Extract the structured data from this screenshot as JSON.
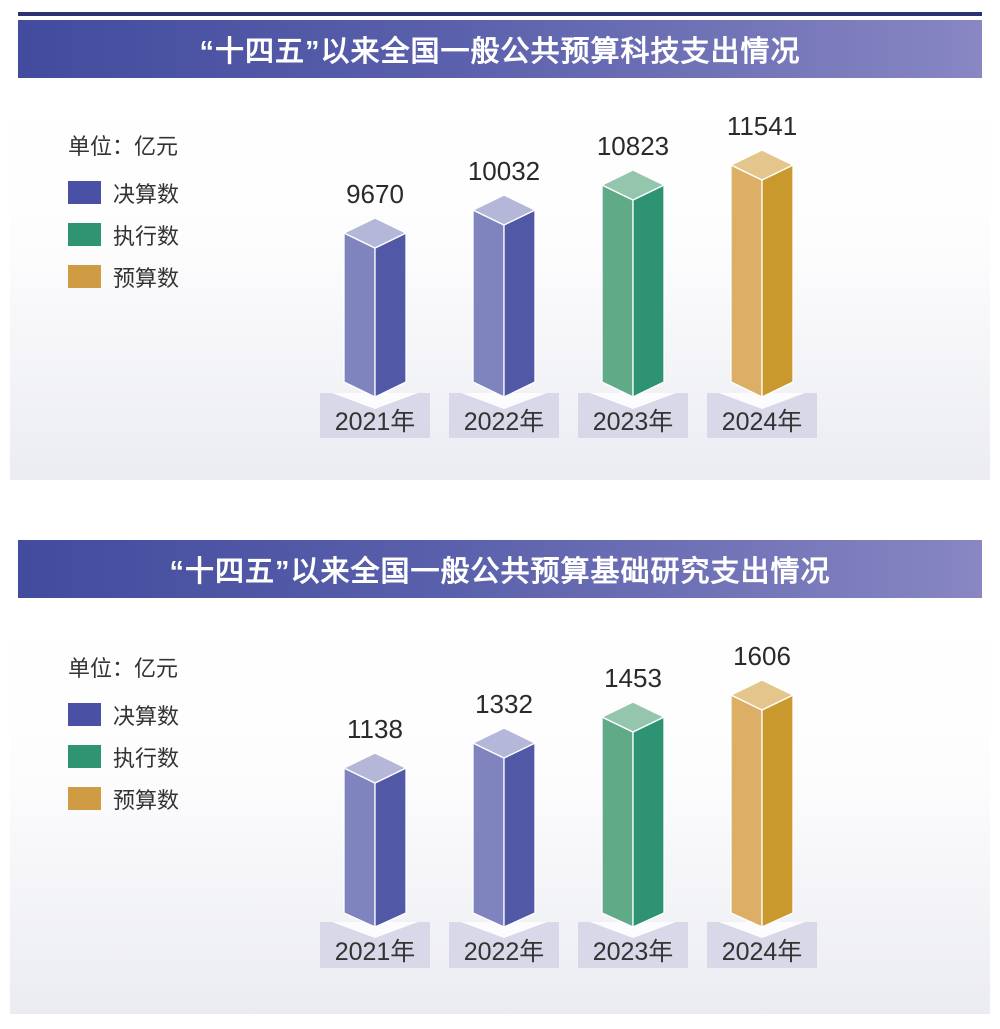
{
  "colors": {
    "title_gradient_left": "#424b9e",
    "title_gradient_right": "#8886c3",
    "panel_gradient_top": "#ffffff",
    "panel_gradient_bottom": "#ebecf2",
    "label_box": "#d8d8e8",
    "label_box_notch": "#fcfcfe",
    "value_text": "#2a2a2a",
    "series": {
      "final": {
        "swatch": "#4a51a4",
        "left": "#8084be",
        "right": "#5158a5",
        "top": "#b5b7d8"
      },
      "executed": {
        "swatch": "#2e9472",
        "left": "#60aa88",
        "right": "#2d9372",
        "top": "#94c5ad"
      },
      "budget": {
        "swatch": "#cf9c44",
        "left": "#dcae66",
        "right": "#c9992e",
        "top": "#e4c68c"
      }
    }
  },
  "legend": {
    "unit_label": "单位：亿元",
    "items": [
      {
        "label": "决算数",
        "key": "final"
      },
      {
        "label": "执行数",
        "key": "executed"
      },
      {
        "label": "预算数",
        "key": "budget"
      }
    ]
  },
  "chart_data": [
    {
      "type": "bar",
      "title": "“十四五”以来全国一般公共预算科技支出情况",
      "unit": "亿元",
      "categories": [
        "2021年",
        "2022年",
        "2023年",
        "2024年"
      ],
      "values": [
        9670,
        10032,
        10823,
        11541
      ],
      "category_series": [
        "决算数",
        "决算数",
        "执行数",
        "预算数"
      ],
      "series_keys": [
        "final",
        "final",
        "executed",
        "budget"
      ],
      "legend": [
        "决算数",
        "执行数",
        "预算数"
      ],
      "style": "3d-column",
      "grid": false,
      "legend_position": "top-left"
    },
    {
      "type": "bar",
      "title": "“十四五”以来全国一般公共预算基础研究支出情况",
      "unit": "亿元",
      "categories": [
        "2021年",
        "2022年",
        "2023年",
        "2024年"
      ],
      "values": [
        1138,
        1332,
        1453,
        1606
      ],
      "category_series": [
        "决算数",
        "决算数",
        "执行数",
        "预算数"
      ],
      "series_keys": [
        "final",
        "final",
        "executed",
        "budget"
      ],
      "legend": [
        "决算数",
        "执行数",
        "预算数"
      ],
      "style": "3d-column",
      "grid": false,
      "legend_position": "top-left"
    }
  ]
}
